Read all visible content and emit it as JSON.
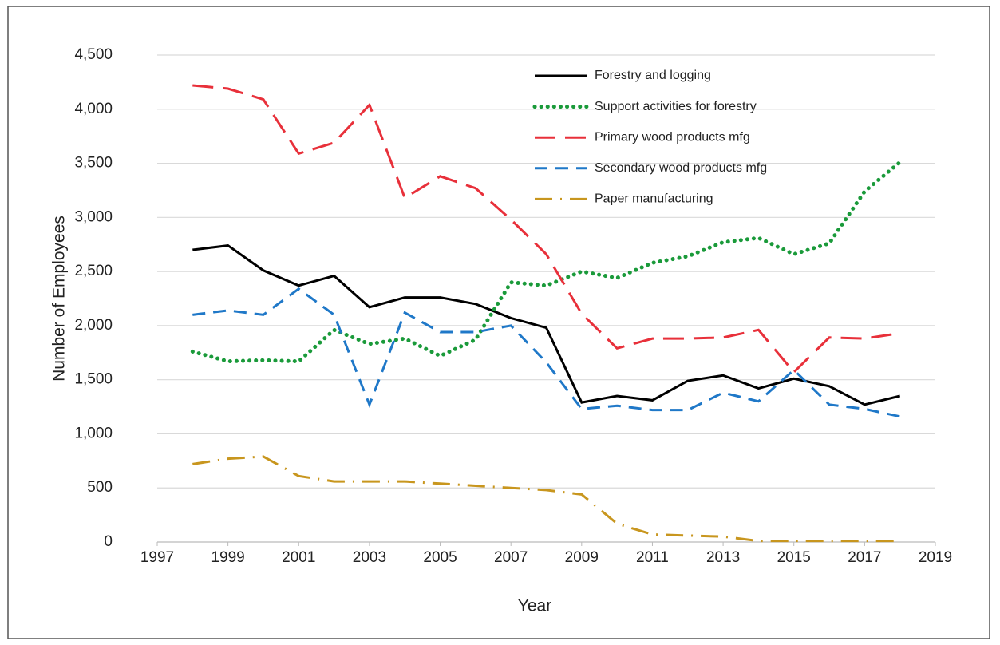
{
  "chart_data": {
    "type": "line",
    "x_label": "Year",
    "y_label": "Number of Employees",
    "x": [
      1998,
      1999,
      2000,
      2001,
      2002,
      2003,
      2004,
      2005,
      2006,
      2007,
      2008,
      2009,
      2010,
      2011,
      2012,
      2013,
      2014,
      2015,
      2016,
      2017,
      2018
    ],
    "series": [
      {
        "name": "Forestry and logging",
        "color": "#000000",
        "style": "solid",
        "values": [
          2700,
          2740,
          2510,
          2370,
          2460,
          2170,
          2260,
          2260,
          2200,
          2070,
          1980,
          1290,
          1350,
          1310,
          1490,
          1540,
          1420,
          1510,
          1440,
          1270,
          1350
        ]
      },
      {
        "name": "Support activities for forestry",
        "color": "#1a9a3a",
        "style": "dotted",
        "values": [
          1760,
          1670,
          1680,
          1670,
          1960,
          1830,
          1880,
          1720,
          1870,
          2400,
          2370,
          2500,
          2440,
          2580,
          2640,
          2770,
          2810,
          2660,
          2760,
          3240,
          3510
        ]
      },
      {
        "name": "Primary wood products mfg",
        "color": "#e8303a",
        "style": "longdash",
        "values": [
          4220,
          4190,
          4090,
          3590,
          3690,
          4040,
          3180,
          3380,
          3270,
          2980,
          2660,
          2110,
          1790,
          1880,
          1880,
          1890,
          1960,
          1570,
          1890,
          1880,
          1930
        ]
      },
      {
        "name": "Secondary wood products mfg",
        "color": "#1f78c8",
        "style": "dash",
        "values": [
          2100,
          2140,
          2100,
          2340,
          2100,
          1270,
          2120,
          1940,
          1940,
          2000,
          1660,
          1230,
          1260,
          1220,
          1220,
          1380,
          1300,
          1590,
          1270,
          1230,
          1160
        ]
      },
      {
        "name": "Paper manufacturing",
        "color": "#c8961e",
        "style": "dashdot",
        "values": [
          720,
          770,
          790,
          610,
          560,
          560,
          560,
          540,
          520,
          500,
          480,
          440,
          170,
          70,
          60,
          50,
          10,
          10,
          10,
          10,
          10
        ]
      }
    ],
    "xlim": [
      1997,
      2019
    ],
    "xticks": [
      1997,
      1999,
      2001,
      2003,
      2005,
      2007,
      2009,
      2011,
      2013,
      2015,
      2017,
      2019
    ],
    "ylim": [
      0,
      4500
    ],
    "yticks": [
      0,
      500,
      {
        "value": 1000,
        "label": "1,000"
      },
      {
        "value": 1500,
        "label": "1,500"
      },
      {
        "value": 2000,
        "label": "2,000"
      },
      {
        "value": 2500,
        "label": "2,500"
      },
      {
        "value": 3000,
        "label": "3,000"
      },
      {
        "value": 3500,
        "label": "3,500"
      },
      {
        "value": 4000,
        "label": "4,000"
      },
      {
        "value": 4500,
        "label": "4,500"
      }
    ],
    "grid": true,
    "legend": "top-right"
  }
}
